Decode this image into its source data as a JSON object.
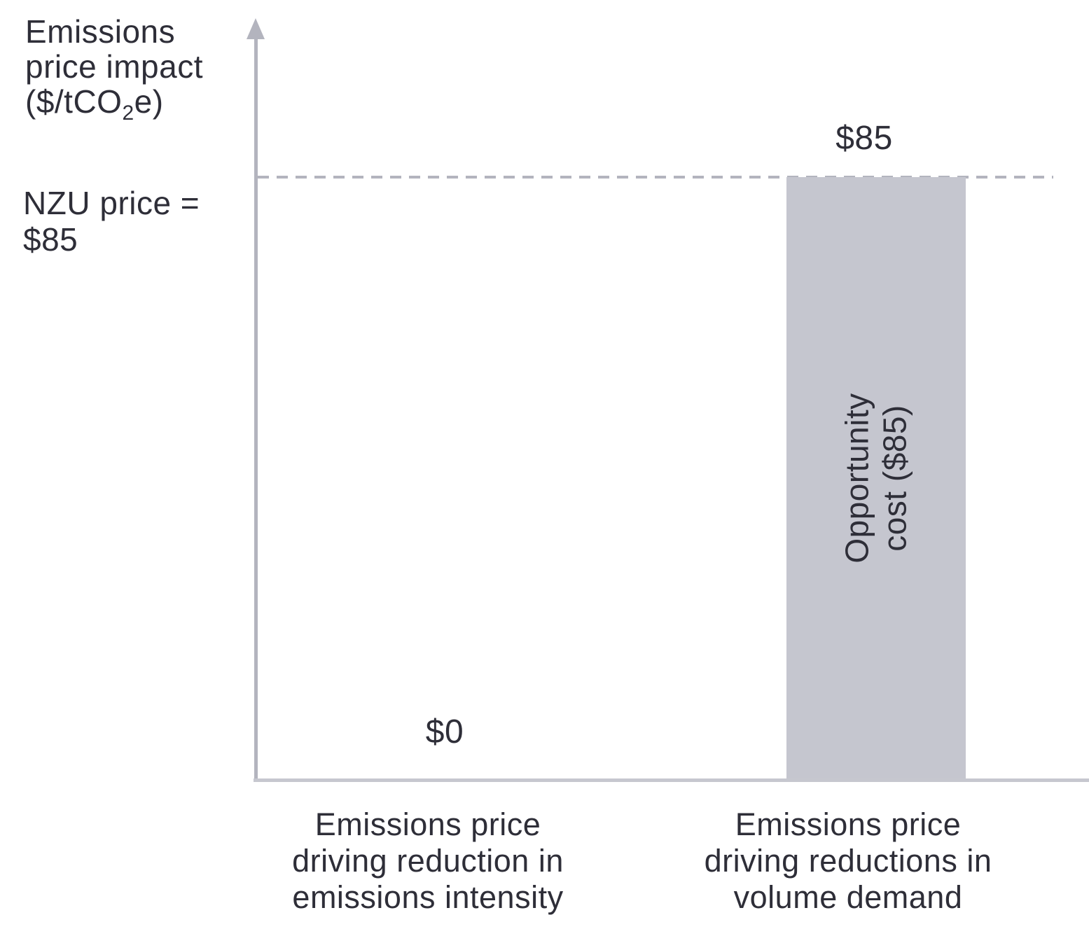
{
  "chart_data": {
    "type": "bar",
    "categories": [
      "Emissions price driving reduction in emissions intensity",
      "Emissions price driving reductions in volume demand"
    ],
    "values": [
      0,
      85
    ],
    "value_labels": [
      "$0",
      "$85"
    ],
    "series": [
      {
        "name": "Emissions price impact",
        "values": [
          0,
          85
        ]
      }
    ],
    "title": "",
    "xlabel": "",
    "ylabel": "Emissions price impact ($/tCO2e)",
    "ylim": [
      0,
      100
    ],
    "grid": false,
    "legend": false,
    "reference_line": {
      "value": 85,
      "label": "NZU price = $85",
      "style": "dashed"
    },
    "bar_annotations": [
      null,
      "Opportunity cost ($85)"
    ],
    "colors": {
      "bar_fill": "#c5c6cf",
      "y_axis": "#b3b4be",
      "x_axis": "#c6c7cf",
      "dashed_line": "#b3b4be",
      "text": "#2e2e38",
      "background": "#ffffff"
    }
  },
  "y_title": {
    "line1": "Emissions",
    "line2": "price impact",
    "line3_prefix": "($/tCO",
    "line3_sub": "2",
    "line3_suffix": "e)"
  },
  "labels": {
    "nzu_price": "NZU price =\n$85",
    "value_right": "$85",
    "value_left": "$0",
    "bar_annotation": "Opportunity\ncost ($85)",
    "category_left": "Emissions price\ndriving reduction in\nemissions intensity",
    "category_right": "Emissions price\ndriving reductions in\nvolume demand"
  }
}
